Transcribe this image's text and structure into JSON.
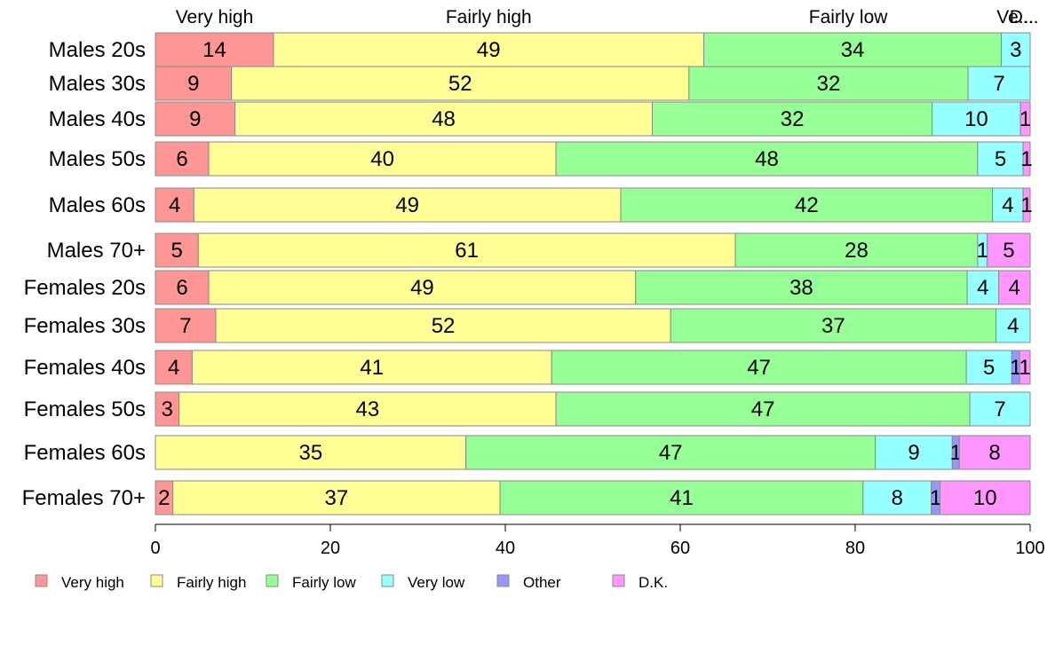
{
  "chart_data": {
    "type": "bar",
    "orientation": "horizontal",
    "stacked": true,
    "percent": true,
    "categories": [
      "Males 20s",
      "Males 30s",
      "Males 40s",
      "Males 50s",
      "Males 60s",
      "Males 70+",
      "Females 20s",
      "Females 30s",
      "Females 40s",
      "Females 50s",
      "Females 60s",
      "Females 70+"
    ],
    "series": [
      {
        "name": "Very high",
        "color": "#ff9696",
        "values": [
          13.5,
          8.7,
          9.1,
          6.1,
          4.4,
          4.9,
          6.1,
          6.9,
          4.2,
          2.7,
          0.0,
          2.0
        ]
      },
      {
        "name": "Fairly high",
        "color": "#ffff96",
        "values": [
          49.2,
          52.3,
          47.7,
          39.7,
          48.8,
          61.4,
          48.8,
          52.0,
          41.1,
          43.1,
          35.5,
          37.4
        ]
      },
      {
        "name": "Fairly low",
        "color": "#96ff96",
        "values": [
          34.0,
          31.9,
          32.0,
          48.2,
          42.5,
          27.7,
          37.9,
          37.2,
          47.4,
          47.3,
          46.8,
          41.5
        ]
      },
      {
        "name": "Very low",
        "color": "#96ffff",
        "values": [
          3.3,
          7.1,
          10.1,
          5.2,
          3.5,
          1.1,
          3.6,
          3.9,
          5.2,
          6.9,
          8.8,
          7.8
        ]
      },
      {
        "name": "Other",
        "color": "#9696ff",
        "values": [
          0.0,
          0.0,
          0.0,
          0.0,
          0.0,
          0.0,
          0.0,
          0.0,
          0.9,
          0.0,
          0.8,
          1.0
        ]
      },
      {
        "name": "D.K.",
        "color": "#ff96ff",
        "values": [
          0.0,
          0.0,
          1.1,
          0.8,
          0.8,
          4.9,
          3.6,
          0.0,
          1.2,
          0.0,
          8.1,
          10.3
        ]
      }
    ],
    "segment_labels": [
      [
        "14",
        "49",
        "34",
        "3",
        "",
        ""
      ],
      [
        "9",
        "52",
        "32",
        "7",
        "",
        ""
      ],
      [
        "9",
        "48",
        "32",
        "10",
        "",
        "1"
      ],
      [
        "6",
        "40",
        "48",
        "5",
        "",
        "1"
      ],
      [
        "4",
        "49",
        "42",
        "4",
        "",
        "1"
      ],
      [
        "5",
        "61",
        "28",
        "1",
        "",
        "5"
      ],
      [
        "6",
        "49",
        "38",
        "4",
        "",
        "4"
      ],
      [
        "7",
        "52",
        "37",
        "4",
        "",
        ""
      ],
      [
        "4",
        "41",
        "47",
        "5",
        "1",
        "1"
      ],
      [
        "3",
        "43",
        "47",
        "7",
        "",
        ""
      ],
      [
        "",
        "35",
        "47",
        "9",
        "1",
        "8"
      ],
      [
        "2",
        "37",
        "41",
        "8",
        "1",
        "10"
      ]
    ],
    "top_labels": [
      {
        "text": "Very high",
        "at": 6.75
      },
      {
        "text": "Fairly high",
        "at": 38.1
      },
      {
        "text": "Fairly low",
        "at": 79.2
      },
      {
        "text": "Ve...",
        "at": 98.3
      },
      {
        "text": "D...",
        "at": 99.3
      }
    ],
    "xlim": [
      0,
      100
    ],
    "xticks": [
      0,
      20,
      40,
      60,
      80,
      100
    ],
    "legend": {
      "position": "bottom",
      "labels": [
        "Very high",
        "Fairly high",
        "Fairly low",
        "Very low",
        "Other",
        "D.K."
      ]
    },
    "grid": false,
    "title": "",
    "xlabel": "",
    "ylabel": ""
  }
}
